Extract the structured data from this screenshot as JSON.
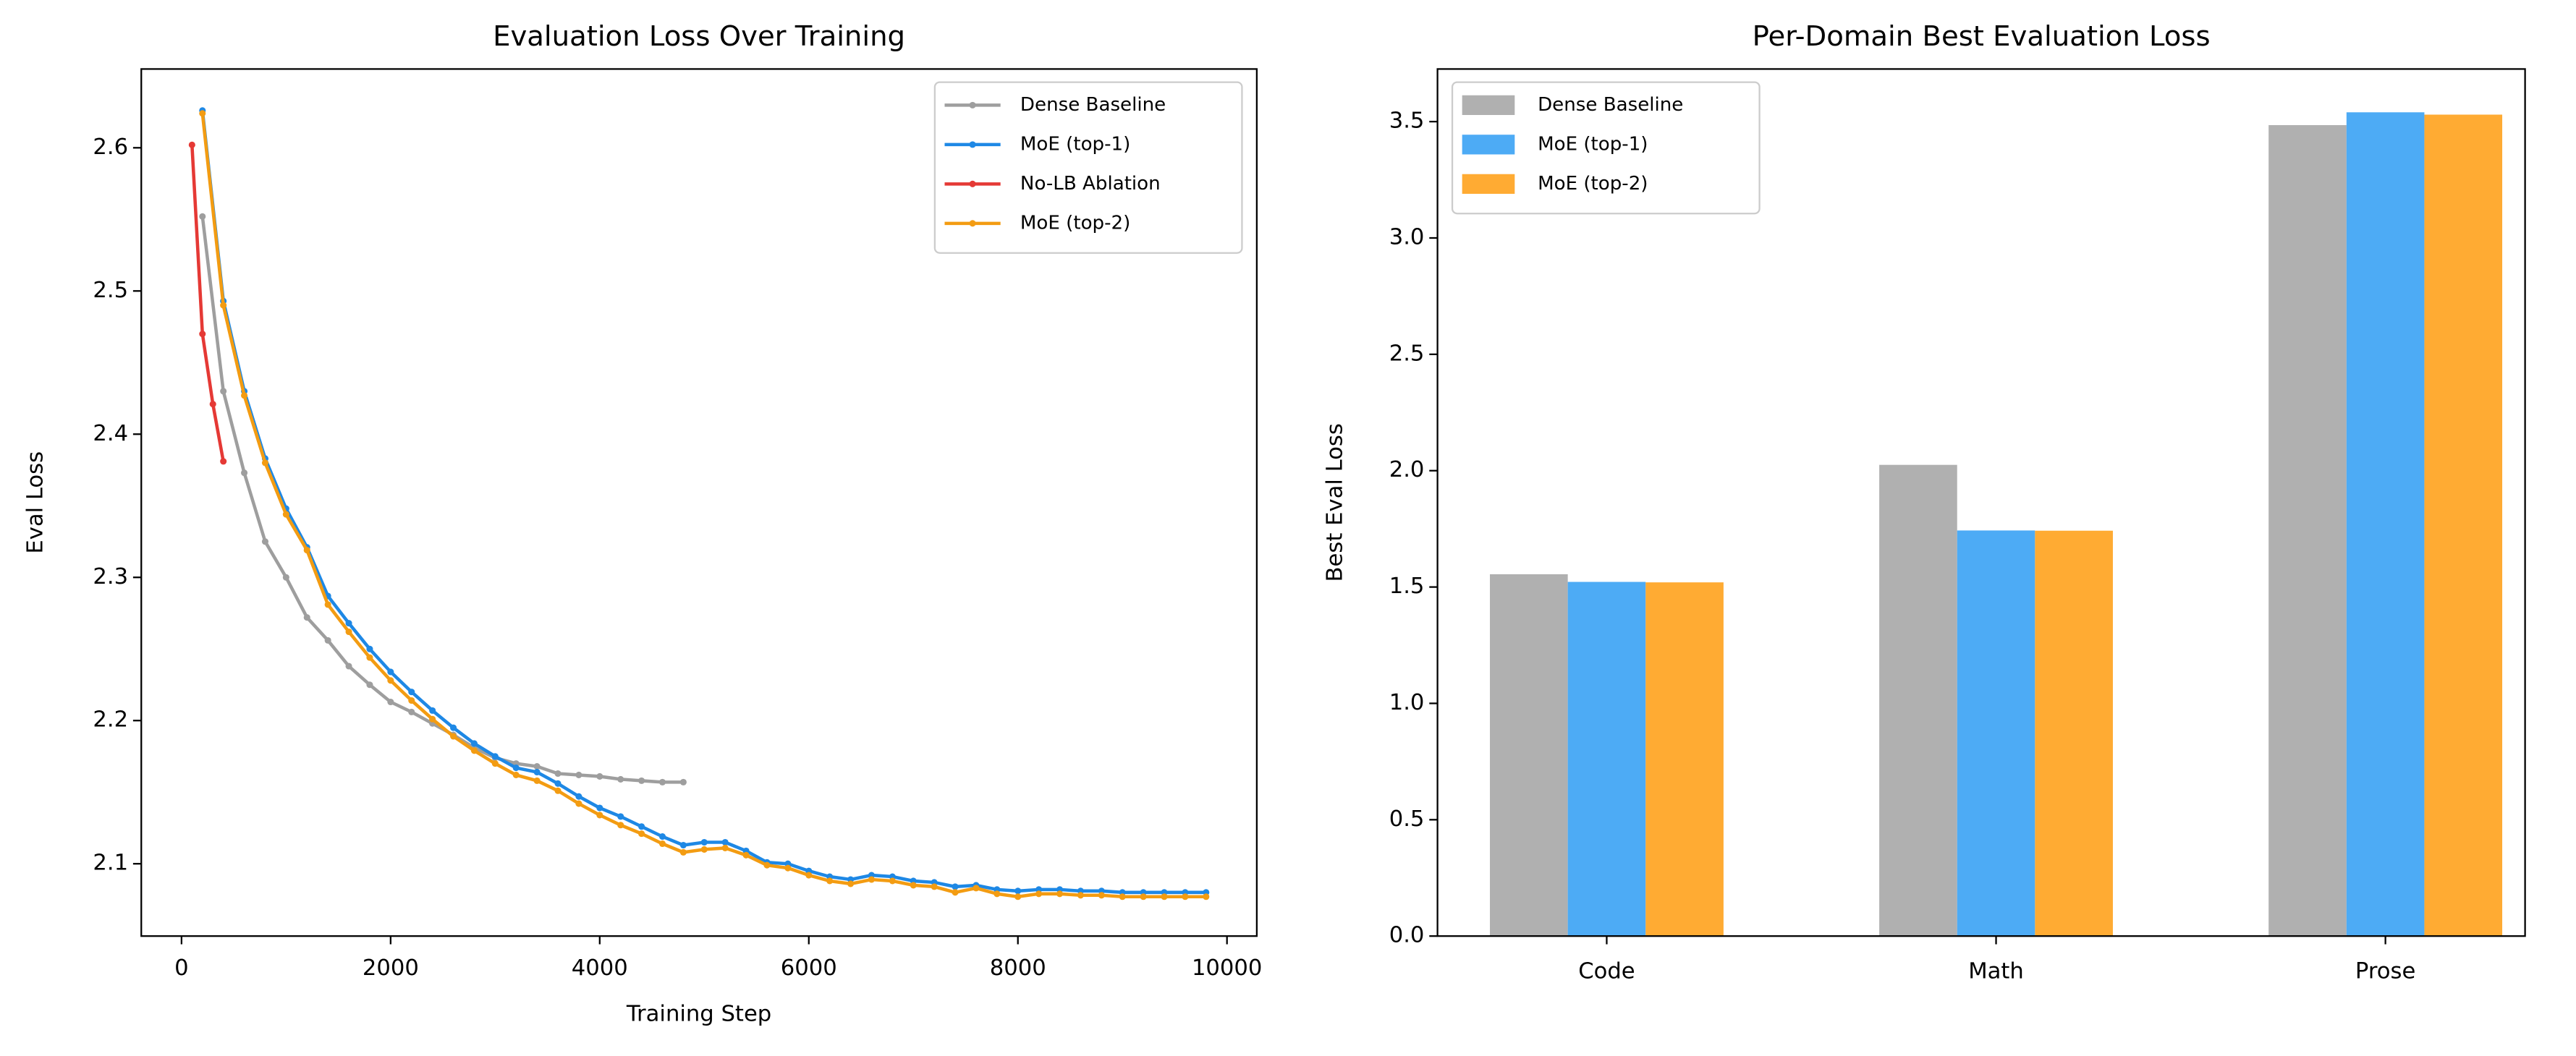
{
  "chart_data": [
    {
      "type": "line",
      "title": "Evaluation Loss Over Training",
      "xlabel": "Training Step",
      "ylabel": "Eval Loss",
      "xlim": [
        -385,
        10285
      ],
      "ylim": [
        2.0495,
        2.655
      ],
      "xticks": [
        0,
        2000,
        4000,
        6000,
        8000,
        10000
      ],
      "yticks": [
        2.1,
        2.2,
        2.3,
        2.4,
        2.5,
        2.6
      ],
      "legend": "upper right",
      "series": [
        {
          "name": "Dense Baseline",
          "color": "#9e9e9e",
          "x": [
            200,
            400,
            600,
            800,
            1000,
            1200,
            1400,
            1600,
            1800,
            2000,
            2200,
            2400,
            2600,
            2800,
            3000,
            3200,
            3400,
            3600,
            3800,
            4000,
            4200,
            4400,
            4600,
            4800
          ],
          "values": [
            2.552,
            2.43,
            2.373,
            2.325,
            2.3,
            2.272,
            2.256,
            2.238,
            2.225,
            2.213,
            2.206,
            2.198,
            2.19,
            2.181,
            2.174,
            2.17,
            2.168,
            2.163,
            2.162,
            2.161,
            2.159,
            2.158,
            2.157,
            2.157
          ]
        },
        {
          "name": "MoE (top-1)",
          "color": "#1e88e5",
          "x": [
            200,
            400,
            600,
            800,
            1000,
            1200,
            1400,
            1600,
            1800,
            2000,
            2200,
            2400,
            2600,
            2800,
            3000,
            3200,
            3400,
            3600,
            3800,
            4000,
            4200,
            4400,
            4600,
            4800,
            5000,
            5200,
            5400,
            5600,
            5800,
            6000,
            6200,
            6400,
            6600,
            6800,
            7000,
            7200,
            7400,
            7600,
            7800,
            8000,
            8200,
            8400,
            8600,
            8800,
            9000,
            9200,
            9400,
            9600,
            9800
          ],
          "values": [
            2.626,
            2.493,
            2.43,
            2.383,
            2.348,
            2.321,
            2.287,
            2.268,
            2.25,
            2.234,
            2.22,
            2.207,
            2.195,
            2.184,
            2.175,
            2.167,
            2.164,
            2.156,
            2.147,
            2.139,
            2.133,
            2.126,
            2.119,
            2.113,
            2.115,
            2.115,
            2.109,
            2.101,
            2.1,
            2.095,
            2.091,
            2.089,
            2.092,
            2.091,
            2.088,
            2.087,
            2.084,
            2.085,
            2.082,
            2.081,
            2.082,
            2.082,
            2.081,
            2.081,
            2.08,
            2.08,
            2.08,
            2.08,
            2.08
          ]
        },
        {
          "name": "No-LB Ablation",
          "color": "#e53935",
          "x": [
            100,
            200,
            300,
            400
          ],
          "values": [
            2.602,
            2.47,
            2.421,
            2.381
          ]
        },
        {
          "name": "MoE (top-2)",
          "color": "#f39c12",
          "x": [
            200,
            400,
            600,
            800,
            1000,
            1200,
            1400,
            1600,
            1800,
            2000,
            2200,
            2400,
            2600,
            2800,
            3000,
            3200,
            3400,
            3600,
            3800,
            4000,
            4200,
            4400,
            4600,
            4800,
            5000,
            5200,
            5400,
            5600,
            5800,
            6000,
            6200,
            6400,
            6600,
            6800,
            7000,
            7200,
            7400,
            7600,
            7800,
            8000,
            8200,
            8400,
            8600,
            8800,
            9000,
            9200,
            9400,
            9600,
            9800
          ],
          "values": [
            2.624,
            2.49,
            2.427,
            2.38,
            2.344,
            2.319,
            2.281,
            2.262,
            2.244,
            2.228,
            2.214,
            2.201,
            2.189,
            2.179,
            2.17,
            2.162,
            2.158,
            2.151,
            2.142,
            2.134,
            2.127,
            2.121,
            2.114,
            2.108,
            2.11,
            2.111,
            2.106,
            2.099,
            2.097,
            2.092,
            2.088,
            2.086,
            2.089,
            2.088,
            2.085,
            2.084,
            2.08,
            2.083,
            2.079,
            2.077,
            2.079,
            2.079,
            2.078,
            2.078,
            2.077,
            2.077,
            2.077,
            2.077,
            2.077
          ]
        }
      ]
    },
    {
      "type": "bar",
      "title": "Per-Domain Best Evaluation Loss",
      "ylabel": "Best Eval Loss",
      "categories": [
        "Code",
        "Math",
        "Prose"
      ],
      "ylim": [
        0,
        3.726
      ],
      "yticks": [
        {
          "value": 0,
          "label": "0.0"
        },
        {
          "value": 0.5,
          "label": "0.5"
        },
        {
          "value": 1,
          "label": "1.0"
        },
        {
          "value": 1.5,
          "label": "1.5"
        },
        {
          "value": 2,
          "label": "2.0"
        },
        {
          "value": 2.5,
          "label": "2.5"
        },
        {
          "value": 3,
          "label": "3.0"
        },
        {
          "value": 3.5,
          "label": "3.5"
        }
      ],
      "legend": "upper left",
      "series": [
        {
          "name": "Dense Baseline",
          "color": "#b0b0b0",
          "values": [
            1.555,
            2.025,
            3.485
          ]
        },
        {
          "name": "MoE (top-1)",
          "color": "#4dabf5",
          "values": [
            1.522,
            1.743,
            3.54
          ]
        },
        {
          "name": "MoE (top-2)",
          "color": "#ffab33",
          "values": [
            1.52,
            1.742,
            3.53
          ]
        }
      ]
    }
  ]
}
